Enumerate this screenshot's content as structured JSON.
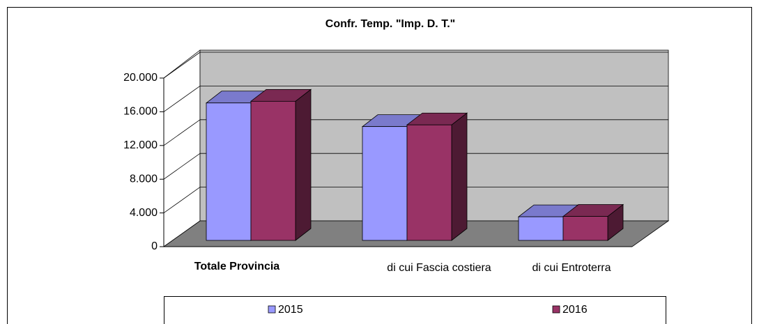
{
  "chart_data": {
    "type": "bar3d",
    "title": "Confr. Temp. \"Imp. D. T.\"",
    "categories": [
      "Totale Provincia",
      "di cui Fascia costiera",
      "di cui Entroterra"
    ],
    "series": [
      {
        "name": "2015",
        "color": "#9999ff",
        "values": [
          16300,
          13500,
          2800
        ]
      },
      {
        "name": "2016",
        "color": "#993366",
        "values": [
          16500,
          13700,
          2850
        ]
      }
    ],
    "ylim": [
      0,
      20000
    ],
    "yticks": [
      0,
      {
        "value": 4000,
        "label": "4.000"
      },
      {
        "value": 8000,
        "label": "8.000"
      },
      {
        "value": 12000,
        "label": "12.000"
      },
      {
        "value": 16000,
        "label": "16.000"
      },
      {
        "value": 20000,
        "label": "20.000"
      }
    ],
    "grid": true,
    "legend": "bottom"
  }
}
